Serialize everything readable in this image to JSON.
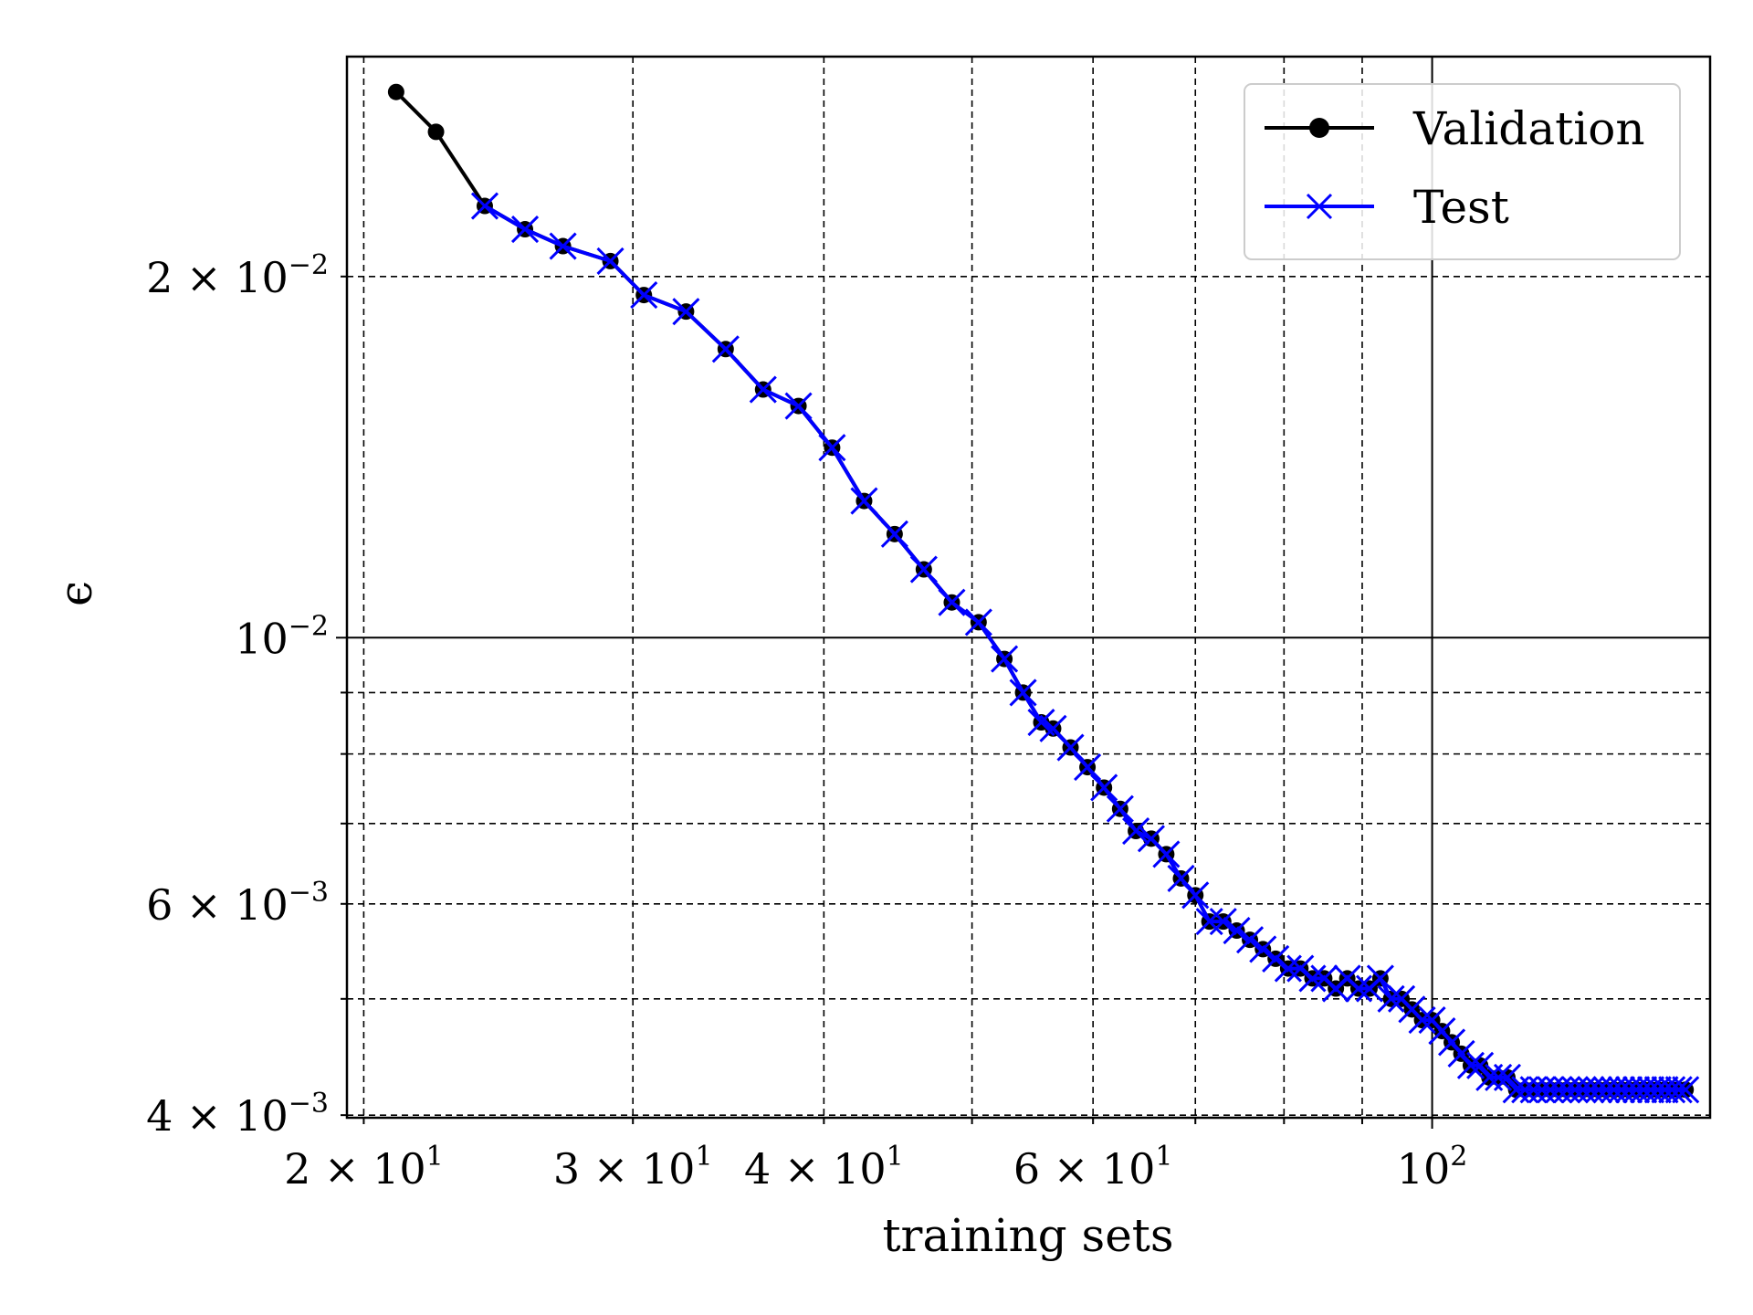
{
  "chart_data": {
    "type": "line",
    "title": "",
    "xlabel": "training sets",
    "ylabel": "ϵ",
    "xscale": "log",
    "yscale": "log",
    "xlim": [
      19.5,
      152
    ],
    "ylim": [
      0.00398,
      0.0305
    ],
    "grid": true,
    "legend_position": "top-right",
    "x_ticks": [
      {
        "value": 20,
        "mantissa": "2",
        "exp": "1",
        "major": false
      },
      {
        "value": 30,
        "mantissa": "3",
        "exp": "1",
        "major": false
      },
      {
        "value": 40,
        "mantissa": "4",
        "exp": "1",
        "major": false
      },
      {
        "value": 60,
        "mantissa": "6",
        "exp": "1",
        "major": false
      },
      {
        "value": 100,
        "mantissa": "",
        "exp": "2",
        "major": true
      }
    ],
    "x_minor_unlabeled": [
      50,
      70,
      80,
      90
    ],
    "y_ticks": [
      {
        "value": 0.004,
        "mantissa": "4",
        "exp": "−3",
        "major": false
      },
      {
        "value": 0.006,
        "mantissa": "6",
        "exp": "−3",
        "major": false
      },
      {
        "value": 0.01,
        "mantissa": "",
        "exp": "−2",
        "major": true
      },
      {
        "value": 0.02,
        "mantissa": "2",
        "exp": "−2",
        "major": false
      }
    ],
    "y_minor_unlabeled": [
      0.005,
      0.007,
      0.008,
      0.009
    ],
    "tick_base": "10",
    "series": [
      {
        "name": "Validation",
        "color": "#000000",
        "marker": "circle",
        "x": [
          21,
          22.3,
          24,
          25.5,
          27,
          29,
          30.5,
          32.5,
          34.5,
          36.5,
          38.5,
          40.5,
          42.5,
          44.5,
          46.5,
          48.5,
          50.5,
          52.5,
          54,
          55.5,
          56.5,
          58,
          59.5,
          61,
          62.5,
          64,
          65.5,
          67,
          68.5,
          70,
          71.5,
          73,
          74.5,
          76,
          77.5,
          79,
          80.5,
          82,
          83.5,
          85,
          86.5,
          88,
          89.5,
          91,
          92.5,
          94,
          95.5,
          97,
          98.5,
          100,
          101.5,
          103,
          104.5,
          106,
          107.5,
          109,
          110.5,
          112,
          113.5,
          115,
          116.5,
          118,
          119.5,
          121,
          122.5,
          124,
          125.5,
          127,
          128.5,
          130,
          131.5,
          133,
          134.5,
          136,
          137.5,
          139,
          140.5,
          142,
          143.5,
          145,
          146.5
        ],
        "y": [
          0.0285,
          0.0264,
          0.0229,
          0.0219,
          0.0212,
          0.0206,
          0.0193,
          0.0187,
          0.0174,
          0.0161,
          0.0156,
          0.0144,
          0.013,
          0.0122,
          0.0114,
          0.0107,
          0.0103,
          0.0096,
          0.009,
          0.0085,
          0.0084,
          0.0081,
          0.0078,
          0.0075,
          0.0072,
          0.0069,
          0.0068,
          0.0066,
          0.0063,
          0.0061,
          0.0058,
          0.0058,
          0.0057,
          0.0056,
          0.0055,
          0.0054,
          0.0053,
          0.0053,
          0.0052,
          0.0052,
          0.0051,
          0.0052,
          0.0051,
          0.0051,
          0.0052,
          0.005,
          0.005,
          0.0049,
          0.0048,
          0.0048,
          0.0047,
          0.0046,
          0.0045,
          0.0044,
          0.0044,
          0.0043,
          0.0043,
          0.0043,
          0.0042,
          0.0042,
          0.0042,
          0.0042,
          0.0042,
          0.0042,
          0.0042,
          0.0042,
          0.0042,
          0.0042,
          0.0042,
          0.0042,
          0.0042,
          0.0042,
          0.0042,
          0.0042,
          0.0042,
          0.0042,
          0.0042,
          0.0042,
          0.0042,
          0.0042,
          0.0042
        ]
      },
      {
        "name": "Test",
        "color": "#0000ff",
        "marker": "x",
        "x": [
          24,
          25.5,
          27,
          29,
          30.5,
          32.5,
          34.5,
          36.5,
          38.5,
          40.5,
          42.5,
          44.5,
          46.5,
          48.5,
          50.5,
          52.5,
          54,
          55.5,
          56.5,
          58,
          59.5,
          61,
          62.5,
          64,
          65.5,
          67,
          68.5,
          70,
          71.5,
          73,
          74.5,
          76,
          77.5,
          79,
          80.5,
          82,
          83.5,
          85,
          86.5,
          88,
          89.5,
          91,
          92.5,
          94,
          95.5,
          97,
          98.5,
          100,
          101.5,
          103,
          104.5,
          106,
          107.5,
          109,
          110.5,
          112,
          113.5,
          115,
          116.5,
          118,
          119.5,
          121,
          122.5,
          124,
          125.5,
          127,
          128.5,
          130,
          131.5,
          133,
          134.5,
          136,
          137.5,
          139,
          140.5,
          142,
          143.5,
          145,
          146.5
        ],
        "y": [
          0.0229,
          0.0219,
          0.0212,
          0.0206,
          0.0193,
          0.0187,
          0.0174,
          0.0161,
          0.0156,
          0.0144,
          0.013,
          0.0122,
          0.0114,
          0.0107,
          0.0103,
          0.0096,
          0.009,
          0.0085,
          0.0084,
          0.0081,
          0.0078,
          0.0075,
          0.0072,
          0.0069,
          0.0068,
          0.0066,
          0.0063,
          0.0061,
          0.0058,
          0.0058,
          0.0057,
          0.0056,
          0.0055,
          0.0054,
          0.0053,
          0.0053,
          0.0052,
          0.0052,
          0.0051,
          0.0052,
          0.0051,
          0.0051,
          0.0052,
          0.005,
          0.005,
          0.0049,
          0.0048,
          0.0048,
          0.0047,
          0.0046,
          0.0045,
          0.0044,
          0.0044,
          0.0043,
          0.0043,
          0.0043,
          0.0042,
          0.0042,
          0.0042,
          0.0042,
          0.0042,
          0.0042,
          0.0042,
          0.0042,
          0.0042,
          0.0042,
          0.0042,
          0.0042,
          0.0042,
          0.0042,
          0.0042,
          0.0042,
          0.0042,
          0.0042,
          0.0042,
          0.0042,
          0.0042,
          0.0042,
          0.0042
        ]
      }
    ]
  }
}
